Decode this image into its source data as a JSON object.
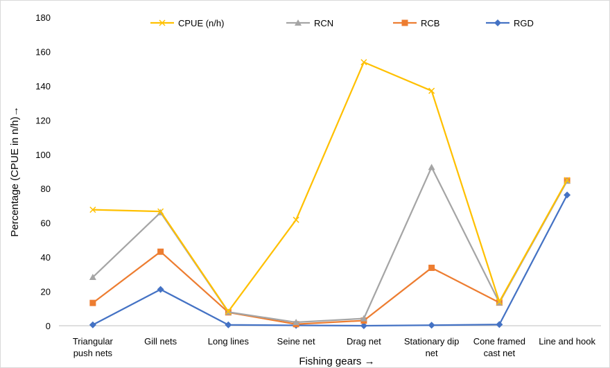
{
  "chart_data": {
    "type": "line",
    "title": "",
    "xlabel": "Fishing gears →",
    "ylabel": "Percentage (CPUE in n/h)→",
    "ylim": [
      0,
      180
    ],
    "yticks": [
      0,
      20,
      40,
      60,
      80,
      100,
      120,
      140,
      160,
      180
    ],
    "grid": false,
    "legend_position": "top",
    "categories": [
      [
        "Triangular",
        "push nets"
      ],
      [
        "Gill nets"
      ],
      [
        "Long lines"
      ],
      [
        "Seine net"
      ],
      [
        "Drag net"
      ],
      [
        "Stationary dip",
        "net"
      ],
      [
        "Cone framed",
        "cast net"
      ],
      [
        "Line and hook"
      ]
    ],
    "series": [
      {
        "name": "CPUE (n/h)",
        "color": "#FFC000",
        "marker": "x",
        "values": [
          67.7,
          66.7,
          8.3,
          61.8,
          153.8,
          137.1,
          14.0,
          85.0
        ]
      },
      {
        "name": "RCN",
        "color": "#A5A5A5",
        "marker": "triangle",
        "values": [
          28.3,
          66.1,
          8.0,
          2.0,
          4.2,
          92.5,
          13.5,
          84.5
        ]
      },
      {
        "name": "RCB",
        "color": "#ED7D31",
        "marker": "square",
        "values": [
          13.3,
          43.2,
          7.8,
          0.9,
          3.0,
          33.8,
          13.5,
          84.7
        ]
      },
      {
        "name": "RGD",
        "color": "#4472C4",
        "marker": "diamond",
        "values": [
          0.5,
          21.2,
          0.5,
          0.2,
          0.0,
          0.3,
          0.7,
          76.3
        ]
      }
    ]
  }
}
